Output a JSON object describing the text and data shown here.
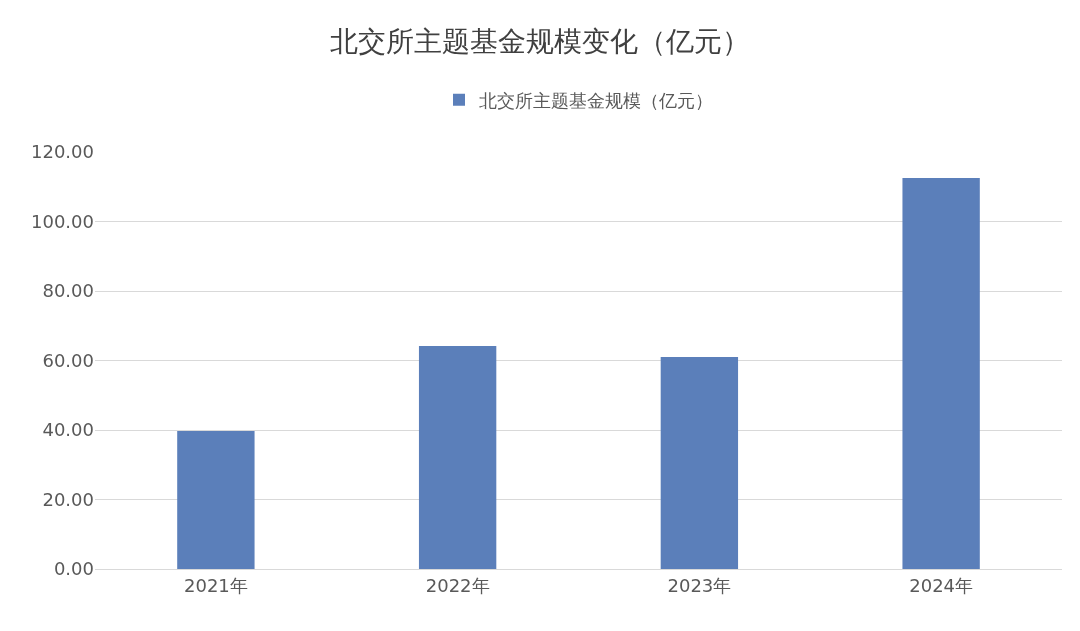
{
  "chart_data": {
    "type": "bar",
    "title": "北交所主题基金规模变化（亿元）",
    "categories": [
      "2021年",
      "2022年",
      "2023年",
      "2024年"
    ],
    "series": [
      {
        "name": "北交所主题基金规模（亿元）",
        "color": "#5b7fba",
        "values": [
          39.7,
          64.2,
          61.0,
          112.5
        ]
      }
    ],
    "ylim": [
      0,
      120
    ],
    "yticks": [
      {
        "value": 0,
        "label": "0.00"
      },
      {
        "value": 20,
        "label": "20.00"
      },
      {
        "value": 40,
        "label": "40.00"
      },
      {
        "value": 60,
        "label": "60.00"
      },
      {
        "value": 80,
        "label": "80.00"
      },
      {
        "value": 100,
        "label": "100.00"
      },
      {
        "value": 120,
        "label": "120.00"
      }
    ],
    "grid": "y",
    "legend": "top"
  }
}
